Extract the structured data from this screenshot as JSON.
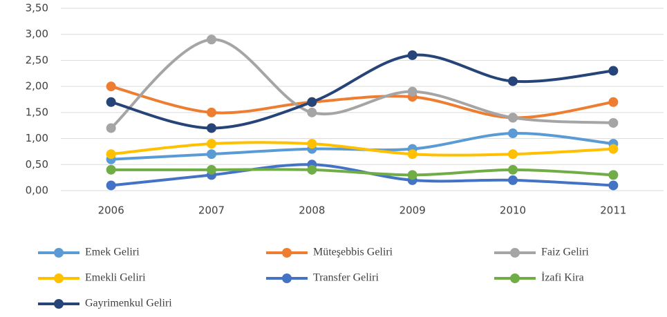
{
  "chart_data": {
    "type": "line",
    "smooth": true,
    "categories": [
      "2006",
      "2007",
      "2008",
      "2009",
      "2010",
      "2011"
    ],
    "series": [
      {
        "name": "Emek Geliri",
        "color": "#5b9bd5",
        "values": [
          0.6,
          0.7,
          0.8,
          0.8,
          1.1,
          0.9
        ]
      },
      {
        "name": "Müteşebbis Geliri",
        "color": "#ed7d31",
        "values": [
          2.0,
          1.5,
          1.7,
          1.8,
          1.4,
          1.7
        ]
      },
      {
        "name": "Faiz Geliri",
        "color": "#a5a5a5",
        "values": [
          1.2,
          2.9,
          1.5,
          1.9,
          1.4,
          1.3
        ]
      },
      {
        "name": "Emekli Geliri",
        "color": "#ffc000",
        "values": [
          0.7,
          0.9,
          0.9,
          0.7,
          0.7,
          0.8
        ]
      },
      {
        "name": "Transfer Geliri",
        "color": "#4472c4",
        "values": [
          0.1,
          0.3,
          0.5,
          0.2,
          0.2,
          0.1
        ]
      },
      {
        "name": "İzafi Kira",
        "color": "#70ad47",
        "values": [
          0.4,
          0.4,
          0.4,
          0.3,
          0.4,
          0.3
        ]
      },
      {
        "name": "Gayrimenkul Geliri",
        "color": "#264478",
        "values": [
          1.7,
          1.2,
          1.7,
          2.6,
          2.1,
          2.3
        ]
      }
    ],
    "ylim": [
      0,
      3.5
    ],
    "yticks": [
      {
        "value": 0,
        "label": "0,00"
      },
      {
        "value": 0.5,
        "label": "0,50"
      },
      {
        "value": 1,
        "label": "1,00"
      },
      {
        "value": 1.5,
        "label": "1,50"
      },
      {
        "value": 2,
        "label": "2,00"
      },
      {
        "value": 2.5,
        "label": "2,50"
      },
      {
        "value": 3,
        "label": "3,00"
      },
      {
        "value": 3.5,
        "label": "3,50"
      }
    ],
    "grid": true,
    "legend": "bottom"
  }
}
